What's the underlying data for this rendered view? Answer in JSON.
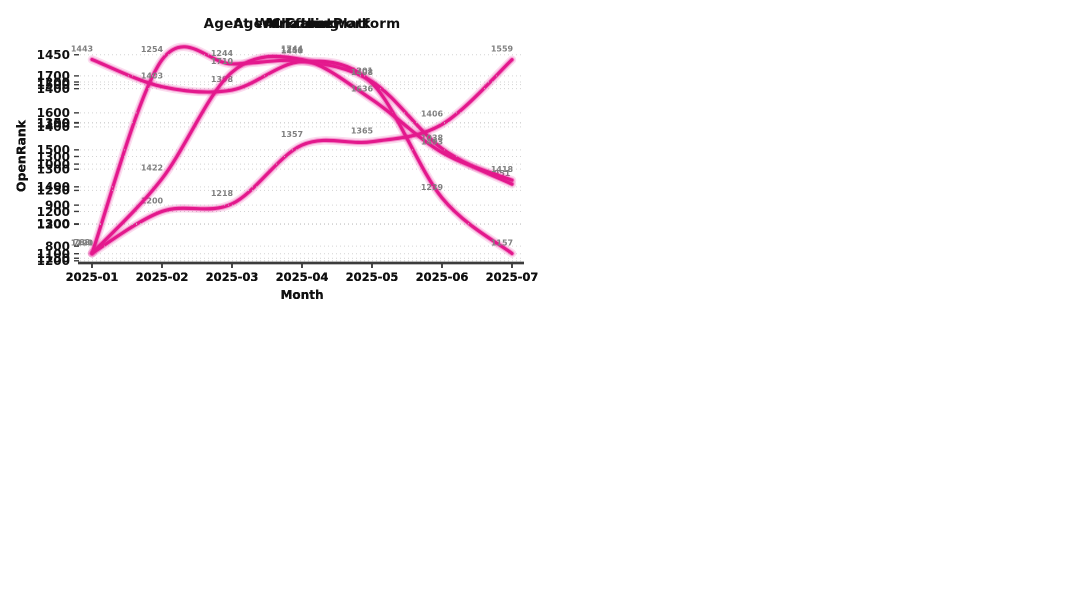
{
  "page": {
    "background_color": "#ffffff",
    "layout": "2x2 grid of line charts"
  },
  "style": {
    "line_color": "#e3188c",
    "line_halo_color": "rgba(233,30,150,0.16)",
    "line_glow_color": "rgba(233,30,150,0.35)",
    "point_label_color": "#808080",
    "tick_label_color": "#111111",
    "grid_color": "#cccccc",
    "spine_color": "#3c3c3c"
  },
  "chart_data": [
    {
      "type": "line",
      "title": "AI Coding",
      "xlabel": "Month",
      "ylabel": "OpenRank",
      "categories": [
        "2025-01",
        "2025-02",
        "2025-03",
        "2025-04",
        "2025-05",
        "2025-06",
        "2025-07"
      ],
      "values": [
        1101,
        1200,
        1218,
        1357,
        1365,
        1406,
        1559
      ],
      "yticks": [
        1100,
        1200,
        1300,
        1400,
        1500
      ],
      "ylim": [
        1078,
        1582
      ],
      "grid": true,
      "legend": "none"
    },
    {
      "type": "line",
      "title": "Chatbot",
      "xlabel": "Month",
      "ylabel": "OpenRank",
      "categories": [
        "2025-01",
        "2025-02",
        "2025-03",
        "2025-04",
        "2025-05",
        "2025-06",
        "2025-07"
      ],
      "values": [
        783,
        1254,
        1244,
        1251,
        1201,
        1038,
        951
      ],
      "yticks": [
        800,
        900,
        1000,
        1100,
        1200
      ],
      "ylim": [
        759,
        1278
      ],
      "grid": true,
      "legend": "none"
    },
    {
      "type": "line",
      "title": "Agent Framework",
      "xlabel": "Month",
      "ylabel": "OpenRank",
      "categories": [
        "2025-01",
        "2025-02",
        "2025-03",
        "2025-04",
        "2025-05",
        "2025-06",
        "2025-07"
      ],
      "values": [
        1443,
        1403,
        1398,
        1440,
        1408,
        1239,
        1157
      ],
      "yticks": [
        1150,
        1200,
        1250,
        1300,
        1350,
        1400,
        1450
      ],
      "ylim": [
        1143,
        1457
      ],
      "grid": true,
      "legend": "none"
    },
    {
      "type": "line",
      "title": "Agent Workflow Platform",
      "xlabel": "Month",
      "ylabel": "OpenRank",
      "categories": [
        "2025-01",
        "2025-02",
        "2025-03",
        "2025-04",
        "2025-05",
        "2025-06",
        "2025-07"
      ],
      "values": [
        1220,
        1422,
        1710,
        1744,
        1636,
        1493,
        1418
      ],
      "yticks": [
        1200,
        1300,
        1400,
        1500,
        1600,
        1700
      ],
      "ylim": [
        1194,
        1770
      ],
      "grid": true,
      "legend": "none"
    }
  ]
}
